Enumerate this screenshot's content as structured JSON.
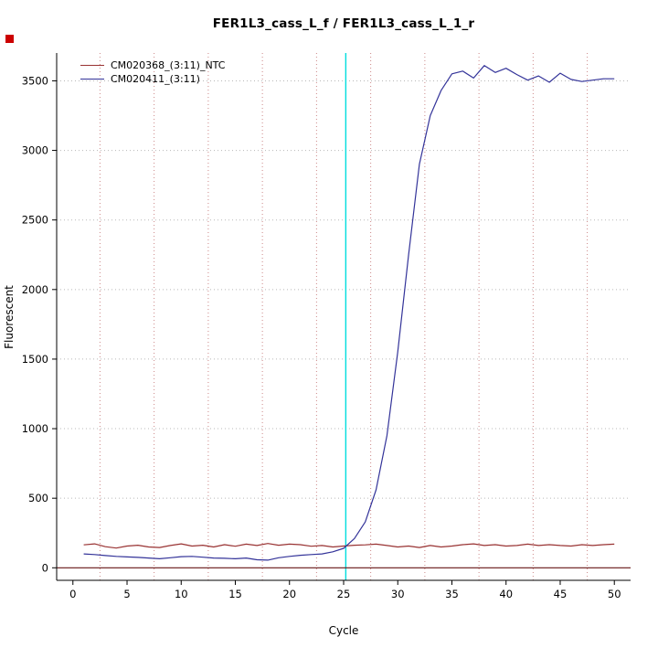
{
  "marker_color": "#cc0000",
  "chart_data": {
    "type": "line",
    "title": "FER1L3_cass_L_f / FER1L3_cass_L_1_r",
    "xlabel": "Cycle",
    "ylabel": "Fluorescent",
    "xlim": [
      -1.5,
      51.5
    ],
    "ylim": [
      -90,
      3700
    ],
    "xticks": [
      0,
      5,
      10,
      15,
      20,
      25,
      30,
      35,
      40,
      45,
      50
    ],
    "yticks": [
      0,
      500,
      1000,
      1500,
      2000,
      2500,
      3000,
      3500
    ],
    "grid": {
      "x_dotted": [
        2.5,
        7.5,
        12.5,
        17.5,
        22.5,
        27.5,
        32.5,
        37.5,
        42.5,
        47.5
      ],
      "x_grid_color": "#cc8888",
      "y_grid_color": "#b8b8b8"
    },
    "threshold_line": {
      "x": 25.2,
      "color": "#00dddd"
    },
    "baseline": {
      "y": 0,
      "color": "#661515"
    },
    "legend_position": "top-left",
    "x": [
      1,
      2,
      3,
      4,
      5,
      6,
      7,
      8,
      9,
      10,
      11,
      12,
      13,
      14,
      15,
      16,
      17,
      18,
      19,
      20,
      21,
      22,
      23,
      24,
      25,
      26,
      27,
      28,
      29,
      30,
      31,
      32,
      33,
      34,
      35,
      36,
      37,
      38,
      39,
      40,
      41,
      42,
      43,
      44,
      45,
      46,
      47,
      48,
      49,
      50
    ],
    "series": [
      {
        "name": "CM020368_(3:11)_NTC",
        "color": "#993333",
        "values": [
          165,
          172,
          152,
          142,
          156,
          162,
          150,
          146,
          160,
          172,
          156,
          162,
          150,
          166,
          155,
          170,
          160,
          175,
          162,
          170,
          166,
          155,
          160,
          150,
          156,
          162,
          165,
          170,
          160,
          150,
          156,
          146,
          160,
          150,
          156,
          166,
          172,
          160,
          166,
          156,
          160,
          170,
          160,
          166,
          160,
          156,
          166,
          160,
          166,
          170
        ]
      },
      {
        "name": "CM020411_(3:11)",
        "color": "#333399",
        "values": [
          100,
          95,
          88,
          82,
          78,
          75,
          70,
          65,
          72,
          80,
          82,
          76,
          70,
          68,
          65,
          70,
          58,
          55,
          72,
          82,
          90,
          95,
          100,
          115,
          140,
          210,
          330,
          560,
          950,
          1550,
          2250,
          2900,
          3250,
          3430,
          3550,
          3570,
          3520,
          3610,
          3560,
          3590,
          3545,
          3505,
          3535,
          3490,
          3555,
          3510,
          3495,
          3505,
          3515,
          3515
        ]
      }
    ]
  }
}
